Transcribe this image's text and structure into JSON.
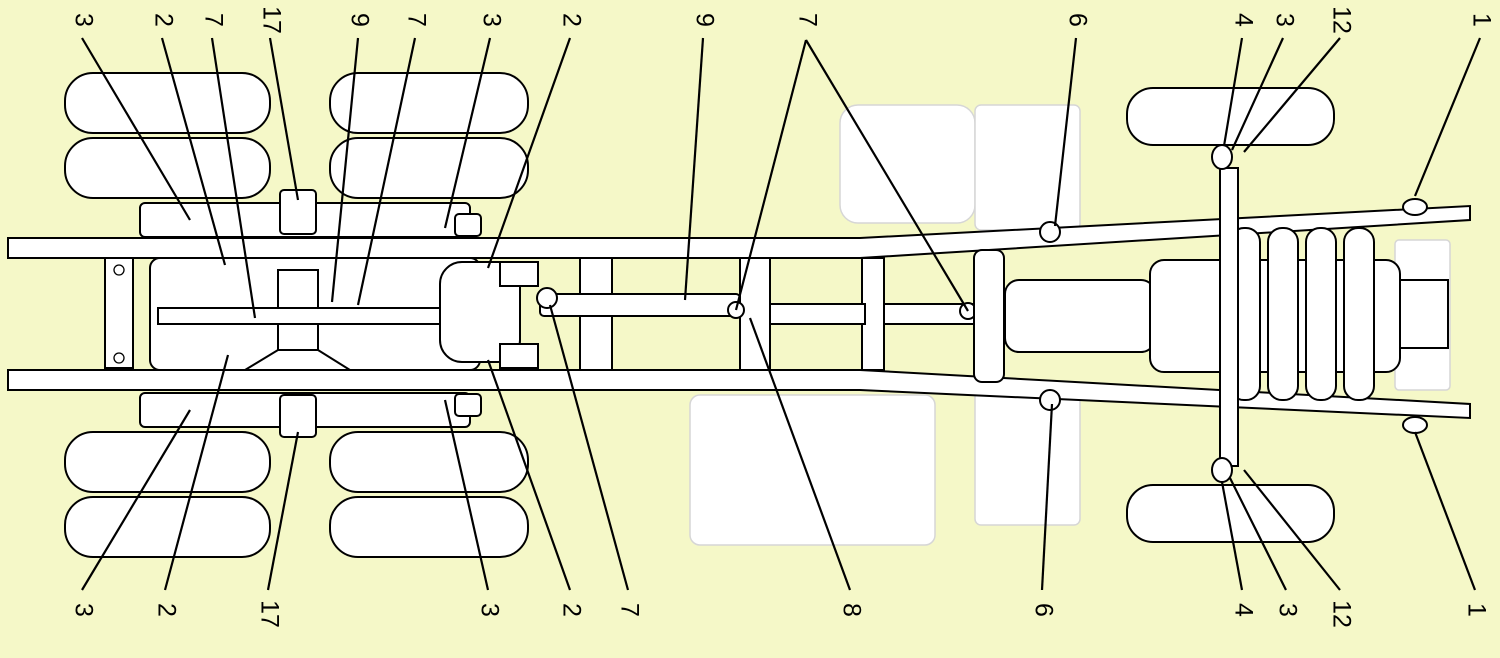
{
  "background": "#f5f8c8",
  "line_color": "#000000",
  "labels": {
    "top": [
      "3",
      "2",
      "7",
      "17",
      "9",
      "7",
      "3",
      "2",
      "9",
      "7",
      "6",
      "4",
      "3",
      "12",
      "1"
    ],
    "bottom": [
      "3",
      "2",
      "17",
      "3",
      "2",
      "7",
      "8",
      "6",
      "4",
      "3",
      "12",
      "1"
    ]
  }
}
